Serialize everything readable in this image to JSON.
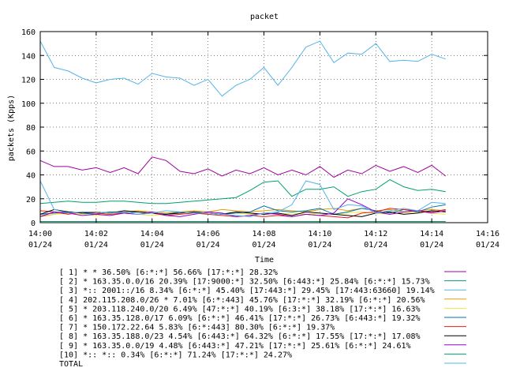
{
  "chart_data": {
    "type": "line",
    "title": "packet",
    "xlabel": "Time",
    "ylabel": "packets (Kpps)",
    "ylim": [
      0,
      160
    ],
    "yticks": [
      "0",
      "20",
      "40",
      "60",
      "80",
      "100",
      "120",
      "140",
      "160"
    ],
    "xlim": [
      0,
      16
    ],
    "xticks": [
      {
        "time": "14:00",
        "date": "01/24"
      },
      {
        "time": "14:02",
        "date": "01/24"
      },
      {
        "time": "14:04",
        "date": "01/24"
      },
      {
        "time": "14:06",
        "date": "01/24"
      },
      {
        "time": "14:08",
        "date": "01/24"
      },
      {
        "time": "14:10",
        "date": "01/24"
      },
      {
        "time": "14:12",
        "date": "01/24"
      },
      {
        "time": "14:14",
        "date": "01/24"
      },
      {
        "time": "14:16",
        "date": "01/24"
      }
    ],
    "grid": true,
    "legend_position": "bottom",
    "series": [
      {
        "name": "[ 1] * * 36.50%  [6:*:*] 56.66% [17:*:*] 28.32%",
        "color": "#a000a0",
        "values": [
          52,
          47,
          47,
          44,
          46,
          42,
          46,
          41,
          55,
          52,
          43,
          41,
          45,
          39,
          44,
          41,
          46,
          40,
          44,
          40,
          47,
          38,
          44,
          41,
          48,
          43,
          47,
          42,
          48,
          39
        ]
      },
      {
        "name": "[ 2] * 163.35.0.0/16 20.39%  [17:9000:*] 32.50% [6:443:*] 25.84% [6:*:*] 15.73%",
        "color": "#00a070",
        "values": [
          16,
          17,
          18,
          17,
          17,
          18,
          18,
          17,
          16,
          16,
          17,
          18,
          19,
          20,
          21,
          27,
          34,
          35,
          22,
          28,
          28,
          30,
          22,
          26,
          28,
          36,
          30,
          27,
          28,
          26
        ]
      },
      {
        "name": "[ 3] *:: 2001::/16 8.34%  [6:*:*] 45.40% [17:443:*] 29.45% [17:443:63660] 19.14%",
        "color": "#56b4e9",
        "values": [
          152,
          130,
          127,
          121,
          117,
          120,
          121,
          116,
          125,
          122,
          121,
          115,
          120,
          106,
          115,
          120,
          130,
          115,
          130,
          147,
          152,
          134,
          142,
          141,
          150,
          135,
          136,
          135,
          141,
          137
        ]
      },
      {
        "name": "[ 4] 202.115.208.0/26 * 7.01%  [6:*:443] 45.76% [17:*:*] 32.19% [6:*:*] 20.56%",
        "color": "#e69f00",
        "values": [
          5,
          7,
          9,
          8,
          8,
          9,
          9,
          10,
          9,
          8,
          9,
          10,
          9,
          11,
          10,
          9,
          10,
          11,
          10,
          9,
          11,
          12,
          10,
          12,
          10,
          11,
          9,
          10,
          11,
          10
        ]
      },
      {
        "name": "[ 5] * 203.118.240.0/20 6.49%  [47:*:*] 40.19% [6:3:*] 38.18% [17:*:*] 16.63%",
        "color": "#f0e442",
        "values": [
          6,
          7,
          8,
          7,
          6,
          7,
          8,
          7,
          6,
          7,
          8,
          9,
          8,
          7,
          8,
          7,
          8,
          7,
          8,
          7,
          8,
          7,
          8,
          9,
          8,
          7,
          8,
          9,
          8,
          7
        ]
      },
      {
        "name": "[ 6] * 163.35.128.0/17 6.09%  [6:*:*] 46.41% [17:*:*] 26.73% [6:443:*] 19.32%",
        "color": "#0072b2",
        "values": [
          7,
          8,
          9,
          8,
          7,
          9,
          8,
          9,
          8,
          7,
          9,
          8,
          8,
          7,
          8,
          9,
          14,
          10,
          9,
          10,
          12,
          7,
          9,
          12,
          10,
          8,
          11,
          9,
          13,
          15
        ]
      },
      {
        "name": "[ 7] * 150.172.22.64 5.83%  [6:*:443] 80.30% [6:*:*] 19.37%",
        "color": "#e51e10",
        "values": [
          10,
          9,
          7,
          9,
          8,
          7,
          8,
          7,
          8,
          6,
          7,
          8,
          7,
          6,
          5,
          6,
          5,
          6,
          5,
          7,
          6,
          5,
          4,
          8,
          9,
          12,
          11,
          10,
          9,
          11
        ]
      },
      {
        "name": "[ 8] * 163.35.188.0/23 4.54%  [6:443:*] 64.32% [6:*:*] 17.55% [17:*:*] 17.08%",
        "color": "#000000",
        "values": [
          7,
          11,
          9,
          8,
          9,
          8,
          10,
          9,
          8,
          7,
          8,
          9,
          8,
          7,
          9,
          8,
          7,
          8,
          6,
          9,
          8,
          7,
          6,
          5,
          8,
          9,
          7,
          8,
          10,
          9
        ]
      },
      {
        "name": "[ 9] * 163.35.0.0/19 4.48%  [6:443:*] 47.21% [17:*:*] 25.61% [6:*:*] 24.61%",
        "color": "#9400d3",
        "values": [
          5,
          9,
          8,
          6,
          7,
          6,
          8,
          7,
          9,
          6,
          5,
          7,
          9,
          8,
          5,
          6,
          8,
          7,
          5,
          7,
          6,
          8,
          20,
          15,
          9,
          7,
          9,
          10,
          8,
          10
        ]
      },
      {
        "name": "[10] *:: *:: 0.34%  [6:*:*] 71.24% [17:*:*] 24.27%",
        "color": "#009e73",
        "values": [
          1,
          1,
          1,
          1,
          1,
          1,
          1,
          1,
          1,
          1,
          1,
          1,
          1,
          1,
          1,
          1,
          1,
          1,
          1,
          1,
          1,
          1,
          1,
          1,
          1,
          1,
          1,
          1,
          1,
          1
        ]
      },
      {
        "name": "TOTAL",
        "color": "#56b4e9",
        "values": [
          35,
          11,
          8,
          9,
          9,
          8,
          9,
          7,
          8,
          10,
          9,
          8,
          8,
          7,
          6,
          5,
          8,
          9,
          15,
          35,
          32,
          11,
          15,
          14,
          8,
          10,
          12,
          10,
          17,
          16
        ]
      }
    ]
  }
}
